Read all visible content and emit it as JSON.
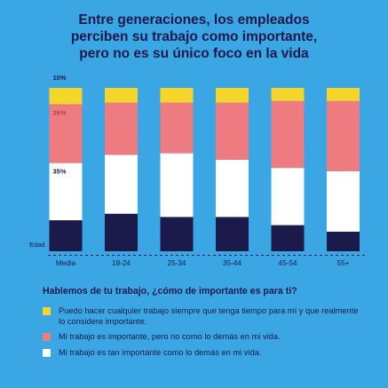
{
  "title_lines": [
    "Entre generaciones, los empleados",
    "perciben su trabajo como importante,",
    "pero no es su único foco en la vida"
  ],
  "question": "Hablemos de tu trabajo, ¿cómo de importante es para ti?",
  "legend": [
    {
      "color": "#f6d52a",
      "text": "Puedo hacer cualquier trabajo siempre que tenga tiempo para mí y que realmente lo considere importante."
    },
    {
      "color": "#ed7b80",
      "text": "Mi trabajo es importante, pero no como lo demás en mi vida."
    },
    {
      "color": "#ffffff",
      "text": "Mi trabajo es tan importante como lo demás en mi vida."
    }
  ],
  "chart_data": {
    "type": "bar",
    "stacked": true,
    "axis_label": "Edad",
    "categories": [
      "Media",
      "18-24",
      "25-34",
      "35-44",
      "45-54",
      "55+"
    ],
    "series": [
      {
        "name": "",
        "color": "#1c1a4a",
        "values": [
          19,
          23,
          21,
          21,
          16,
          12
        ]
      },
      {
        "name": "Mi trabajo es tan importante como lo demás en mi vida.",
        "color": "#ffffff",
        "values": [
          35,
          36,
          39,
          35,
          35,
          37
        ]
      },
      {
        "name": "Mi trabajo es importante, pero no como lo demás en mi vida.",
        "color": "#ed7b80",
        "values": [
          36,
          32,
          31,
          35,
          41,
          43
        ]
      },
      {
        "name": "Puedo hacer cualquier trabajo siempre que tenga tiempo para mí y que realmente lo considere importante.",
        "color": "#f6d52a",
        "values": [
          10,
          9,
          9,
          9,
          8,
          8
        ]
      }
    ],
    "data_labels": {
      "Media": [
        "",
        "35%",
        "36%",
        "10%"
      ]
    },
    "ylim": [
      0,
      100
    ],
    "grid": false
  }
}
